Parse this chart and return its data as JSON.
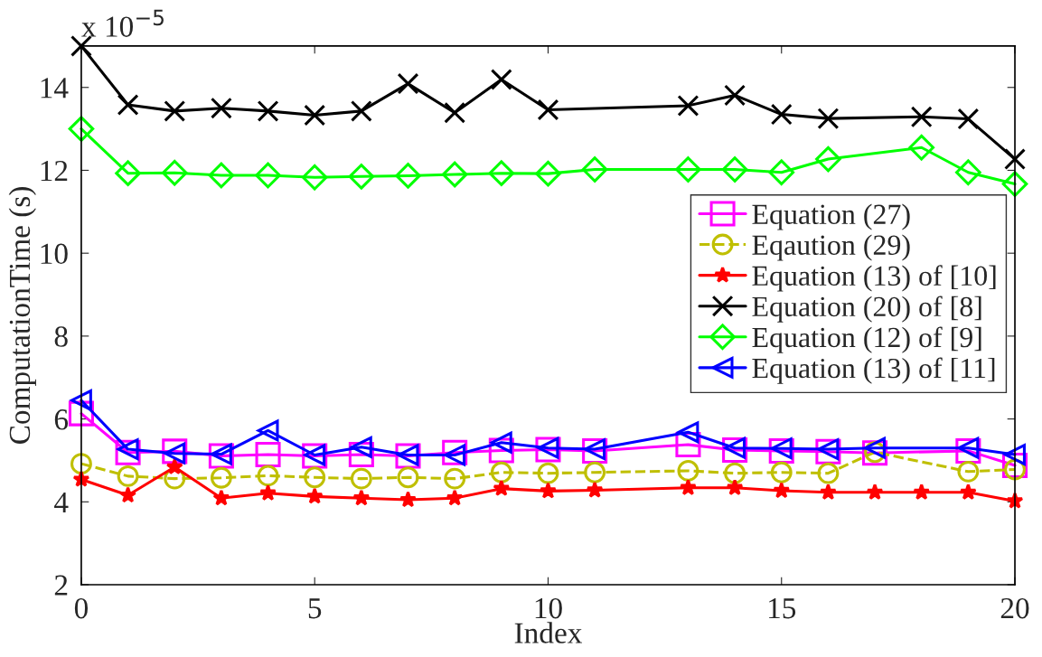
{
  "chart_data": {
    "type": "line",
    "xlabel": "Index",
    "ylabel": "ComputationTime (s)",
    "annotations": [
      "x 10$^{−5}$"
    ],
    "xlim": [
      0,
      20
    ],
    "ylim": [
      2,
      15
    ],
    "xticks": [
      0,
      5,
      10,
      15,
      20
    ],
    "yticks": [
      2,
      4,
      6,
      8,
      10,
      12,
      14
    ],
    "grid": false,
    "legend": "right",
    "series": [
      {
        "name": "Equation (27)",
        "color": "#ff00ff",
        "marker": "square",
        "line_style": "solid",
        "x": [
          0,
          1,
          2,
          3,
          4,
          5,
          6,
          7,
          8,
          9,
          10,
          11,
          13,
          14,
          15,
          16,
          17,
          19,
          20
        ],
        "values": [
          6.13,
          5.19,
          5.22,
          5.11,
          5.14,
          5.11,
          5.14,
          5.11,
          5.19,
          5.24,
          5.26,
          5.23,
          5.38,
          5.25,
          5.23,
          5.21,
          5.18,
          5.23,
          4.88
        ]
      },
      {
        "name": "Eqaution (29)",
        "color": "#bfbf00",
        "marker": "circle",
        "line_style": "dashed",
        "x": [
          0,
          1,
          2,
          3,
          4,
          5,
          6,
          7,
          8,
          9,
          10,
          11,
          13,
          14,
          15,
          16,
          17,
          19,
          20
        ],
        "values": [
          4.92,
          4.62,
          4.56,
          4.58,
          4.63,
          4.59,
          4.56,
          4.59,
          4.56,
          4.71,
          4.69,
          4.71,
          4.75,
          4.69,
          4.71,
          4.69,
          5.2,
          4.73,
          4.78
        ]
      },
      {
        "name": "Equation (13) of [10]",
        "color": "#ff0000",
        "marker": "star",
        "line_style": "solid",
        "x": [
          0,
          1,
          2,
          3,
          4,
          5,
          6,
          7,
          8,
          9,
          10,
          11,
          13,
          14,
          15,
          16,
          17,
          18,
          19,
          20
        ],
        "values": [
          4.54,
          4.16,
          4.84,
          4.09,
          4.21,
          4.13,
          4.09,
          4.05,
          4.09,
          4.32,
          4.26,
          4.28,
          4.34,
          4.34,
          4.27,
          4.23,
          4.23,
          4.23,
          4.23,
          4.02
        ]
      },
      {
        "name": "Equation (20) of [8]",
        "color": "#000000",
        "marker": "cross",
        "line_style": "solid",
        "x": [
          0,
          1,
          2,
          3,
          4,
          5,
          6,
          7,
          8,
          9,
          10,
          13,
          14,
          15,
          16,
          18,
          19,
          20
        ],
        "values": [
          15,
          13.58,
          13.43,
          13.5,
          13.43,
          13.33,
          13.43,
          14.09,
          13.39,
          14.19,
          13.46,
          13.56,
          13.81,
          13.35,
          13.25,
          13.29,
          13.24,
          12.27
        ]
      },
      {
        "name": "Equation (12) of [9]",
        "color": "#00ff00",
        "marker": "diamond",
        "line_style": "solid",
        "x": [
          0,
          1,
          2,
          3,
          4,
          5,
          6,
          7,
          8,
          9,
          10,
          11,
          13,
          14,
          15,
          16,
          18,
          19,
          20
        ],
        "values": [
          13.0,
          11.93,
          11.94,
          11.88,
          11.88,
          11.83,
          11.85,
          11.87,
          11.9,
          11.93,
          11.92,
          12.02,
          12.02,
          12.02,
          11.95,
          12.27,
          12.55,
          11.95,
          11.67
        ]
      },
      {
        "name": "Equation (13) of [11]",
        "color": "#0000ff",
        "marker": "triangle",
        "line_style": "solid",
        "x": [
          0,
          1,
          2,
          3,
          4,
          5,
          6,
          7,
          8,
          9,
          10,
          11,
          13,
          14,
          15,
          16,
          17,
          19,
          20
        ],
        "values": [
          6.45,
          5.27,
          5.17,
          5.15,
          5.72,
          5.13,
          5.32,
          5.13,
          5.13,
          5.43,
          5.3,
          5.27,
          5.68,
          5.3,
          5.29,
          5.27,
          5.3,
          5.3,
          5.14
        ]
      }
    ]
  }
}
